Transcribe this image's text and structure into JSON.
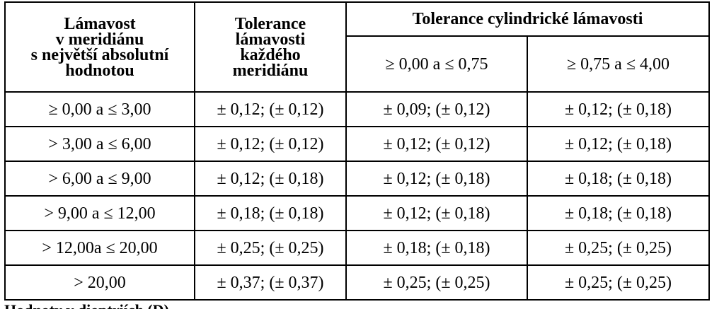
{
  "table": {
    "headers": {
      "col1": [
        "Lámavost",
        "v meridiánu",
        "s největší absolutní",
        "hodnotou"
      ],
      "col2": [
        "Tolerance",
        "lámavosti",
        "každého",
        "meridiánu"
      ],
      "group": "Tolerance cylindrické lámavosti",
      "sub1": "≥ 0,00 a ≤ 0,75",
      "sub2": "≥ 0,75 a ≤ 4,00"
    },
    "rows": [
      {
        "range": "≥ 0,00 a ≤ 3,00",
        "meridian": "± 0,12; (± 0,12)",
        "cyl1": "± 0,09; (± 0,12)",
        "cyl2": "± 0,12; (± 0,18)"
      },
      {
        "range": "> 3,00 a ≤ 6,00",
        "meridian": "± 0,12; (± 0,12)",
        "cyl1": "± 0,12; (± 0,12)",
        "cyl2": "± 0,12; (± 0,18)"
      },
      {
        "range": "> 6,00 a ≤ 9,00",
        "meridian": "± 0,12; (± 0,18)",
        "cyl1": "± 0,12; (± 0,18)",
        "cyl2": "± 0,18; (± 0,18)"
      },
      {
        "range": "> 9,00 a ≤ 12,00",
        "meridian": "± 0,18; (± 0,18)",
        "cyl1": "± 0,12; (± 0,18)",
        "cyl2": "± 0,18; (± 0,18)"
      },
      {
        "range": "> 12,00a ≤ 20,00",
        "meridian": "± 0,25; (± 0,25)",
        "cyl1": "± 0,18; (± 0,18)",
        "cyl2": "± 0,25; (± 0,25)"
      },
      {
        "range": "> 20,00",
        "meridian": "± 0,37; (± 0,37)",
        "cyl1": "± 0,25; (± 0,25)",
        "cyl2": "± 0,25; (± 0,25)"
      }
    ]
  },
  "footer": {
    "text": "Hodnoty v dioptriích (D)"
  }
}
